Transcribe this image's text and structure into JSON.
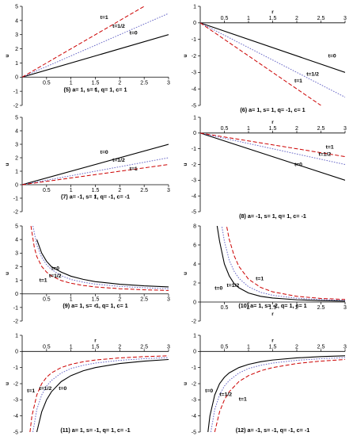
{
  "chart_data": [
    {
      "type": "line",
      "caption": "(5) a= 1, s= 1, q= 1, c= 1",
      "xlabel": "r",
      "ylabel": "u",
      "xlim": [
        0,
        3
      ],
      "ylim": [
        -2,
        5
      ],
      "xticks": [
        "0.5",
        "1",
        "1.5",
        "2",
        "2.5",
        "3"
      ],
      "yticks": [
        "-2",
        "-1",
        "0",
        "1",
        "2",
        "3",
        "4",
        "5"
      ],
      "series": [
        {
          "name": "t=0",
          "style": "solid",
          "color": "#000000",
          "x": [
            0,
            3
          ],
          "y": [
            0,
            3
          ]
        },
        {
          "name": "t=1/2",
          "style": "dotted",
          "color": "#6a6ac8",
          "x": [
            0,
            3
          ],
          "y": [
            0,
            4.5
          ]
        },
        {
          "name": "t=1",
          "style": "dashed",
          "color": "#cc0000",
          "x": [
            0,
            2.5
          ],
          "y": [
            0,
            5
          ]
        }
      ],
      "annotations": [
        {
          "text": "t=1",
          "x": 1.6,
          "y": 4.1
        },
        {
          "text": "t=1/2",
          "x": 1.85,
          "y": 3.5
        },
        {
          "text": "t=0",
          "x": 2.2,
          "y": 3.0
        }
      ]
    },
    {
      "type": "line",
      "caption": "(6) a= 1, s= 1, q= -1, c= 1",
      "xlabel": "r",
      "ylabel": "u",
      "xlim": [
        0,
        3
      ],
      "ylim": [
        -5,
        1
      ],
      "xticks": [
        "0.5",
        "1",
        "1.5",
        "2",
        "2.5",
        "3"
      ],
      "yticks": [
        "-5",
        "-4",
        "-3",
        "-2",
        "-1",
        "0",
        "1"
      ],
      "series": [
        {
          "name": "t=0",
          "style": "solid",
          "color": "#000000",
          "x": [
            0,
            3
          ],
          "y": [
            0,
            -3
          ]
        },
        {
          "name": "t=1/2",
          "style": "dotted",
          "color": "#6a6ac8",
          "x": [
            0,
            3
          ],
          "y": [
            0,
            -4.5
          ]
        },
        {
          "name": "t=1",
          "style": "dashed",
          "color": "#cc0000",
          "x": [
            0,
            2.5
          ],
          "y": [
            0,
            -5
          ]
        }
      ],
      "annotations": [
        {
          "text": "t=0",
          "x": 2.65,
          "y": -2.1
        },
        {
          "text": "t=1/2",
          "x": 2.2,
          "y": -3.2
        },
        {
          "text": "t=1",
          "x": 1.95,
          "y": -3.6
        }
      ]
    },
    {
      "type": "line",
      "caption": "(7) a= -1, s= 1, q= -1, c= -1",
      "xlabel": "r",
      "ylabel": "u",
      "xlim": [
        0,
        3
      ],
      "ylim": [
        -2,
        5
      ],
      "xticks": [
        "0.5",
        "1",
        "1.5",
        "2",
        "2.5",
        "3"
      ],
      "yticks": [
        "-2",
        "-1",
        "0",
        "1",
        "2",
        "3",
        "4",
        "5"
      ],
      "series": [
        {
          "name": "t=0",
          "style": "solid",
          "color": "#000000",
          "x": [
            0,
            3
          ],
          "y": [
            0,
            3
          ]
        },
        {
          "name": "t=1/2",
          "style": "dotted",
          "color": "#6a6ac8",
          "x": [
            0,
            3
          ],
          "y": [
            0,
            2
          ]
        },
        {
          "name": "t=1",
          "style": "dashed",
          "color": "#cc0000",
          "x": [
            0,
            3
          ],
          "y": [
            0,
            1.5
          ]
        }
      ],
      "annotations": [
        {
          "text": "t=0",
          "x": 1.6,
          "y": 2.3
        },
        {
          "text": "t=1/2",
          "x": 1.85,
          "y": 1.7
        },
        {
          "text": "t=1",
          "x": 2.2,
          "y": 1.05
        }
      ]
    },
    {
      "type": "line",
      "caption": "(8) a= -1, s= 1, q= 1, c= -1",
      "xlabel": "r",
      "ylabel": "u",
      "xlim": [
        0,
        3
      ],
      "ylim": [
        -5,
        1
      ],
      "xticks": [
        "0.5",
        "1",
        "1.5",
        "2",
        "2.5",
        "3"
      ],
      "yticks": [
        "-5",
        "-4",
        "-3",
        "-2",
        "-1",
        "0",
        "1"
      ],
      "series": [
        {
          "name": "t=0",
          "style": "solid",
          "color": "#000000",
          "x": [
            0,
            3
          ],
          "y": [
            0,
            -3
          ]
        },
        {
          "name": "t=1/2",
          "style": "dotted",
          "color": "#6a6ac8",
          "x": [
            0,
            3
          ],
          "y": [
            0,
            -2
          ]
        },
        {
          "name": "t=1",
          "style": "dashed",
          "color": "#cc0000",
          "x": [
            0,
            3
          ],
          "y": [
            0,
            -1.5
          ]
        }
      ],
      "annotations": [
        {
          "text": "t=1",
          "x": 2.6,
          "y": -1.0
        },
        {
          "text": "t=1/2",
          "x": 2.45,
          "y": -1.45
        },
        {
          "text": "t=0",
          "x": 1.95,
          "y": -2.1
        }
      ]
    },
    {
      "type": "line",
      "caption": "(9) a= 1, s= -1, q= 1, c= 1",
      "xlabel": "r",
      "ylabel": "u",
      "xlim": [
        0,
        3
      ],
      "ylim": [
        -2,
        5
      ],
      "xticks": [
        "0.5",
        "1",
        "1.5",
        "2",
        "2.5",
        "3"
      ],
      "yticks": [
        "-2",
        "-1",
        "0",
        "1",
        "2",
        "3",
        "4",
        "5"
      ],
      "series": [
        {
          "name": "t=0",
          "style": "solid",
          "color": "#000000",
          "x": [
            0.3,
            0.4,
            0.5,
            0.6,
            0.8,
            1.0,
            1.25,
            1.5,
            2.0,
            2.5,
            3.0
          ],
          "y": [
            4.0,
            3.0,
            2.4,
            2.0,
            1.6,
            1.3,
            1.07,
            0.9,
            0.71,
            0.59,
            0.51
          ]
        },
        {
          "name": "t=1/2",
          "style": "dotted",
          "color": "#6a6ac8",
          "x": [
            0.22,
            0.3,
            0.4,
            0.5,
            0.6,
            0.8,
            1.0,
            1.25,
            1.5,
            2.0,
            2.5,
            3.0
          ],
          "y": [
            5.0,
            3.6,
            2.7,
            2.15,
            1.8,
            1.34,
            1.06,
            0.86,
            0.72,
            0.55,
            0.45,
            0.38
          ]
        },
        {
          "name": "t=1",
          "style": "dashed",
          "color": "#cc0000",
          "x": [
            0.18,
            0.25,
            0.3,
            0.4,
            0.5,
            0.6,
            0.8,
            1.0,
            1.25,
            1.5,
            2.0,
            2.5,
            3.0
          ],
          "y": [
            5.0,
            3.4,
            2.75,
            2.02,
            1.6,
            1.32,
            0.98,
            0.78,
            0.62,
            0.51,
            0.38,
            0.3,
            0.25
          ]
        }
      ],
      "annotations": [
        {
          "text": "t=0",
          "x": 0.6,
          "y": 1.75
        },
        {
          "text": "t=1/2",
          "x": 0.55,
          "y": 1.2
        },
        {
          "text": "t=1",
          "x": 0.35,
          "y": 0.9
        }
      ]
    },
    {
      "type": "line",
      "caption": "(10) a= 1, s= -2, q= 1, c= 1",
      "xlabel": "r",
      "ylabel": "u",
      "xlim": [
        0,
        3
      ],
      "ylim": [
        -2,
        8
      ],
      "xticks": [
        "0.5",
        "1",
        "1.5",
        "2",
        "2.5",
        "3"
      ],
      "yticks": [
        "-2",
        "0",
        "2",
        "4",
        "6",
        "8"
      ],
      "series": [
        {
          "name": "t=0",
          "style": "solid",
          "color": "#000000",
          "x": [
            0.35,
            0.4,
            0.5,
            0.6,
            0.7,
            0.8,
            1.0,
            1.25,
            1.5,
            2.0,
            2.5,
            3.0
          ],
          "y": [
            8.0,
            6.4,
            4.0,
            2.75,
            1.95,
            1.5,
            0.95,
            0.6,
            0.42,
            0.24,
            0.15,
            0.1
          ]
        },
        {
          "name": "t=1/2",
          "style": "dotted",
          "color": "#6a6ac8",
          "x": [
            0.45,
            0.5,
            0.6,
            0.7,
            0.8,
            1.0,
            1.25,
            1.5,
            2.0,
            2.5,
            3.0
          ],
          "y": [
            7.9,
            6.4,
            4.4,
            3.25,
            2.5,
            1.6,
            1.02,
            0.71,
            0.4,
            0.26,
            0.18
          ]
        },
        {
          "name": "t=1",
          "style": "dashed",
          "color": "#cc0000",
          "x": [
            0.55,
            0.6,
            0.7,
            0.8,
            1.0,
            1.25,
            1.5,
            2.0,
            2.5,
            3.0
          ],
          "y": [
            7.9,
            6.6,
            4.9,
            3.75,
            2.4,
            1.54,
            1.07,
            0.6,
            0.38,
            0.27
          ]
        }
      ],
      "annotations": [
        {
          "text": "t=1",
          "x": 1.15,
          "y": 2.3
        },
        {
          "text": "t=1/2",
          "x": 0.55,
          "y": 1.6
        },
        {
          "text": "t=0",
          "x": 0.3,
          "y": 1.3
        }
      ]
    },
    {
      "type": "line",
      "caption": "(11) a= 1, s= -1, q= 1, c= -1",
      "xlabel": "r",
      "ylabel": "u",
      "xlim": [
        0,
        3
      ],
      "ylim": [
        -5,
        1
      ],
      "xticks": [
        "0.5",
        "1",
        "1.5",
        "2",
        "2.5",
        "3"
      ],
      "yticks": [
        "-5",
        "-4",
        "-3",
        "-2",
        "-1",
        "0",
        "1"
      ],
      "series": [
        {
          "name": "t=0",
          "style": "solid",
          "color": "#000000",
          "x": [
            0.3,
            0.4,
            0.5,
            0.6,
            0.8,
            1.0,
            1.25,
            1.5,
            2.0,
            2.5,
            3.0
          ],
          "y": [
            -5.0,
            -3.75,
            -3.0,
            -2.5,
            -1.87,
            -1.5,
            -1.2,
            -1.0,
            -0.75,
            -0.6,
            -0.5
          ]
        },
        {
          "name": "t=1/2",
          "style": "dotted",
          "color": "#6a6ac8",
          "x": [
            0.22,
            0.3,
            0.4,
            0.5,
            0.6,
            0.8,
            1.0,
            1.25,
            1.5,
            2.0,
            2.5,
            3.0
          ],
          "y": [
            -5.0,
            -3.6,
            -2.7,
            -2.15,
            -1.8,
            -1.34,
            -1.06,
            -0.86,
            -0.72,
            -0.55,
            -0.45,
            -0.38
          ]
        },
        {
          "name": "t=1",
          "style": "dashed",
          "color": "#cc0000",
          "x": [
            0.16,
            0.2,
            0.3,
            0.4,
            0.5,
            0.6,
            0.8,
            1.0,
            1.25,
            1.5,
            2.0,
            2.5,
            3.0
          ],
          "y": [
            -5.0,
            -4.0,
            -2.7,
            -2.0,
            -1.6,
            -1.33,
            -1.0,
            -0.8,
            -0.64,
            -0.53,
            -0.4,
            -0.32,
            -0.27
          ]
        }
      ],
      "annotations": [
        {
          "text": "t=1",
          "x": 0.1,
          "y": -2.55
        },
        {
          "text": "t=1/2",
          "x": 0.35,
          "y": -2.4
        },
        {
          "text": "t=0",
          "x": 0.75,
          "y": -2.4
        }
      ]
    },
    {
      "type": "line",
      "caption": "(12) a= -1, s= -1, q= -1, c= -1",
      "xlabel": "r",
      "ylabel": "u",
      "xlim": [
        0,
        3
      ],
      "ylim": [
        -5,
        1
      ],
      "xticks": [
        "0.5",
        "1",
        "1.5",
        "2",
        "2.5",
        "3"
      ],
      "yticks": [
        "-5",
        "-4",
        "-3",
        "-2",
        "-1",
        "0",
        "1"
      ],
      "series": [
        {
          "name": "t=0",
          "style": "solid",
          "color": "#000000",
          "x": [
            0.16,
            0.2,
            0.3,
            0.4,
            0.5,
            0.6,
            0.8,
            1.0,
            1.25,
            1.5,
            2.0,
            2.5,
            3.0
          ],
          "y": [
            -5.0,
            -4.0,
            -2.7,
            -2.0,
            -1.6,
            -1.33,
            -1.0,
            -0.8,
            -0.64,
            -0.53,
            -0.4,
            -0.32,
            -0.27
          ]
        },
        {
          "name": "t=1/2",
          "style": "dotted",
          "color": "#6a6ac8",
          "x": [
            0.22,
            0.3,
            0.4,
            0.5,
            0.6,
            0.8,
            1.0,
            1.25,
            1.5,
            2.0,
            2.5,
            3.0
          ],
          "y": [
            -5.0,
            -3.6,
            -2.7,
            -2.15,
            -1.8,
            -1.34,
            -1.06,
            -0.86,
            -0.72,
            -0.55,
            -0.45,
            -0.38
          ]
        },
        {
          "name": "t=1",
          "style": "dashed",
          "color": "#cc0000",
          "x": [
            0.3,
            0.4,
            0.5,
            0.6,
            0.8,
            1.0,
            1.25,
            1.5,
            2.0,
            2.5,
            3.0
          ],
          "y": [
            -5.0,
            -3.75,
            -3.0,
            -2.5,
            -1.87,
            -1.5,
            -1.2,
            -1.0,
            -0.75,
            -0.6,
            -0.5
          ]
        }
      ],
      "annotations": [
        {
          "text": "t=0",
          "x": 0.1,
          "y": -2.55
        },
        {
          "text": "t=1/2",
          "x": 0.4,
          "y": -2.75
        },
        {
          "text": "t=1",
          "x": 0.8,
          "y": -3.05
        }
      ]
    }
  ]
}
